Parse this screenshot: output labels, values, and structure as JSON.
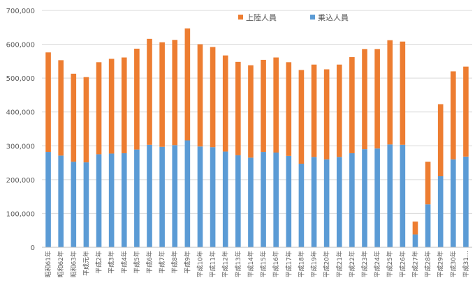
{
  "chart_data": {
    "type": "bar",
    "stacked": true,
    "title": "",
    "xlabel": "",
    "ylabel": "",
    "ylim": [
      0,
      700000
    ],
    "yticks": [
      0,
      100000,
      200000,
      300000,
      400000,
      500000,
      600000,
      700000
    ],
    "ytick_labels": [
      "0",
      "100,000",
      "200,000",
      "300,000",
      "400,000",
      "500,000",
      "600,000",
      "700,000"
    ],
    "grid": true,
    "legend_position": "top-right",
    "categories": [
      "昭和61年",
      "昭和62年",
      "昭和63年",
      "平成元年",
      "平成2年",
      "平成3年",
      "平成4年",
      "平成5年",
      "平成6年",
      "平成7年",
      "平成8年",
      "平成9年",
      "平成10年",
      "平成11年",
      "平成12年",
      "平成13年",
      "平成14年",
      "平成15年",
      "平成16年",
      "平成17年",
      "平成18年",
      "平成19年",
      "平成20年",
      "平成21年",
      "平成22年",
      "平成23年",
      "平成24年",
      "平成25年",
      "平成26年",
      "平成27年",
      "平成28年",
      "平成29年",
      "平成30年",
      "平成31…"
    ],
    "series": [
      {
        "name": "乗込人員",
        "color": "#5b9bd5",
        "values": [
          282000,
          271000,
          253000,
          251000,
          275000,
          277000,
          278000,
          289000,
          303000,
          297000,
          302000,
          316000,
          298000,
          296000,
          283000,
          272000,
          265000,
          282000,
          280000,
          270000,
          247000,
          267000,
          260000,
          267000,
          278000,
          290000,
          292000,
          304000,
          303000,
          38000,
          127000,
          210000,
          260000,
          268000
        ]
      },
      {
        "name": "上陸人員",
        "color": "#ed7d31",
        "values": [
          294000,
          282000,
          260000,
          252000,
          272000,
          280000,
          283000,
          298000,
          313000,
          309000,
          311000,
          331000,
          302000,
          296000,
          284000,
          276000,
          273000,
          272000,
          281000,
          277000,
          277000,
          273000,
          266000,
          273000,
          284000,
          296000,
          294000,
          308000,
          305000,
          38000,
          126000,
          213000,
          260000,
          266000
        ]
      }
    ]
  }
}
